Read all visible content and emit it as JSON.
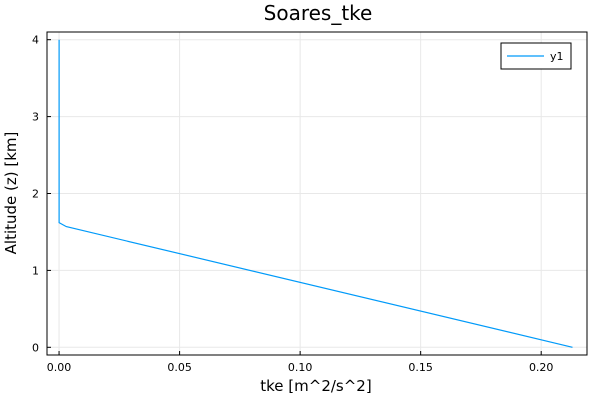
{
  "chart_data": {
    "type": "line",
    "title": "Soares_tke",
    "xlabel": "tke [m^2/s^2]",
    "ylabel": "Altitude (z) [km]",
    "xlim": [
      -0.005,
      0.219
    ],
    "ylim": [
      -0.1,
      4.1
    ],
    "xticks": [
      0.0,
      0.05,
      0.1,
      0.15,
      0.2
    ],
    "xtick_labels": [
      "0.00",
      "0.05",
      "0.10",
      "0.15",
      "0.20"
    ],
    "yticks": [
      0,
      1,
      2,
      3,
      4
    ],
    "ytick_labels": [
      "0",
      "1",
      "2",
      "3",
      "4"
    ],
    "grid": true,
    "legend_position": "top-right",
    "series": [
      {
        "name": "y1",
        "color": "#009af9",
        "x": [
          0.0,
          0.0,
          0.003,
          0.213
        ],
        "y": [
          4.0,
          1.62,
          1.57,
          0.0
        ]
      }
    ]
  }
}
